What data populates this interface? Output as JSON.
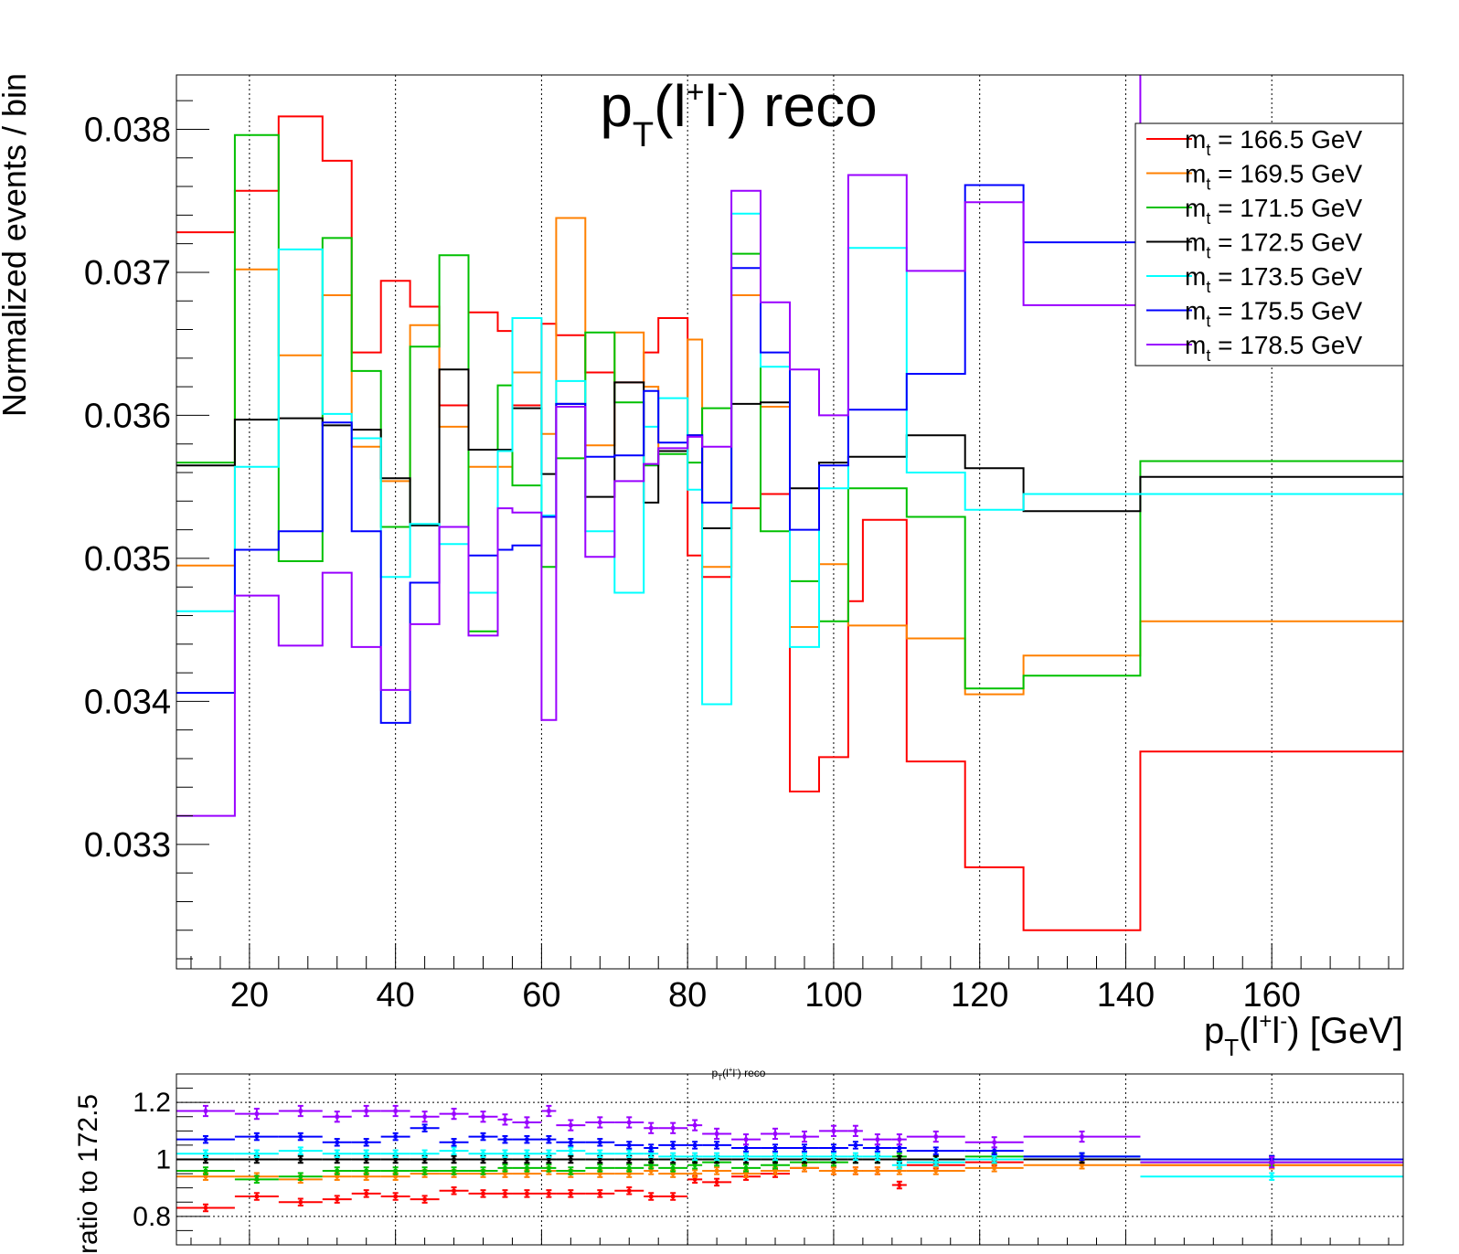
{
  "chart_data": [
    {
      "type": "line",
      "title": "p_T(l+l-) reco",
      "title_parts": {
        "base": "p",
        "sub": "T",
        "open": "(l",
        "sup1": "+",
        "mid": "l",
        "sup2": "-",
        "close": ") reco"
      },
      "xlabel_parts": {
        "base": "p",
        "sub": "T",
        "open": "(l",
        "sup1": "+",
        "mid": "l",
        "sup2": "-",
        "close": ") [GeV]"
      },
      "ylabel": "Normalized events / bin",
      "xlim": [
        10,
        178
      ],
      "ylim": [
        0.03213,
        0.03838
      ],
      "x_ticks": [
        20,
        40,
        60,
        80,
        100,
        120,
        140,
        160
      ],
      "x_tick_labels": [
        "20",
        "40",
        "60",
        "80",
        "100",
        "120",
        "140",
        "160"
      ],
      "y_ticks": [
        0.033,
        0.034,
        0.035,
        0.036,
        0.037,
        0.038
      ],
      "y_tick_labels": [
        "0.033",
        "0.034",
        "0.035",
        "0.036",
        "0.037",
        "0.038"
      ],
      "grid": "vertical",
      "legend_position": "top-right",
      "legend_prefix": "m",
      "legend_sub": "t",
      "bin_edges": [
        10,
        18,
        24,
        30,
        34,
        38,
        42,
        46,
        50,
        54,
        56,
        60,
        62,
        66,
        70,
        74,
        76,
        80,
        82,
        86,
        90,
        94,
        98,
        102,
        104,
        108,
        110,
        118,
        126,
        142,
        178
      ],
      "series": [
        {
          "name": "= 166.5 GeV",
          "color": "#ff0000",
          "values": [
            0.03728,
            0.03757,
            0.03809,
            0.03778,
            0.03644,
            0.03694,
            0.03676,
            0.03607,
            0.03672,
            0.03659,
            0.03607,
            0.03664,
            0.03656,
            0.0363,
            0.03623,
            0.03644,
            0.03668,
            0.03502,
            0.03487,
            0.03535,
            0.03545,
            0.03337,
            0.03361,
            0.0347,
            0.03527,
            0.03527,
            0.03358,
            0.03284,
            0.0324,
            0.03365
          ]
        },
        {
          "name": "= 169.5 GeV",
          "color": "#ff8000",
          "values": [
            0.03495,
            0.03702,
            0.03642,
            0.03684,
            0.03578,
            0.03554,
            0.03663,
            0.03592,
            0.03564,
            0.03564,
            0.0363,
            0.03587,
            0.03738,
            0.03579,
            0.03658,
            0.0362,
            0.03575,
            0.03653,
            0.03494,
            0.03684,
            0.03606,
            0.03452,
            0.03496,
            0.03453,
            0.03453,
            0.03453,
            0.03444,
            0.03405,
            0.03432,
            0.03456
          ]
        },
        {
          "name": "= 171.5 GeV",
          "color": "#00c000",
          "values": [
            0.03567,
            0.03796,
            0.03498,
            0.03724,
            0.03631,
            0.03522,
            0.03648,
            0.03712,
            0.03449,
            0.03621,
            0.03551,
            0.03494,
            0.0357,
            0.03658,
            0.03609,
            0.03565,
            0.03573,
            0.03567,
            0.03605,
            0.03713,
            0.03519,
            0.03484,
            0.03456,
            0.03549,
            0.03549,
            0.03549,
            0.03529,
            0.03409,
            0.03418,
            0.03568
          ]
        },
        {
          "name": "= 172.5 GeV",
          "color": "#000000",
          "values": [
            0.03565,
            0.03597,
            0.03598,
            0.03593,
            0.0359,
            0.03556,
            0.03523,
            0.03632,
            0.03576,
            0.03576,
            0.03605,
            0.03559,
            0.03608,
            0.03543,
            0.03623,
            0.03539,
            0.03575,
            0.03586,
            0.03521,
            0.03608,
            0.03609,
            0.03549,
            0.03567,
            0.03571,
            0.03571,
            0.03571,
            0.03586,
            0.03563,
            0.03533,
            0.03557
          ]
        },
        {
          "name": "= 173.5 GeV",
          "color": "#00ffff",
          "values": [
            0.03463,
            0.03564,
            0.03716,
            0.03601,
            0.03584,
            0.03487,
            0.03524,
            0.0351,
            0.03476,
            0.03575,
            0.03668,
            0.0353,
            0.03624,
            0.03519,
            0.03476,
            0.03592,
            0.03612,
            0.03548,
            0.03398,
            0.03741,
            0.03634,
            0.03438,
            0.03549,
            0.03717,
            0.03717,
            0.03717,
            0.0356,
            0.03534,
            0.03545,
            0.03545
          ]
        },
        {
          "name": "= 175.5 GeV",
          "color": "#0000ff",
          "values": [
            0.03406,
            0.03506,
            0.03519,
            0.03595,
            0.03519,
            0.03385,
            0.03483,
            0.03522,
            0.03502,
            0.03506,
            0.03509,
            0.03529,
            0.03608,
            0.03571,
            0.03572,
            0.03617,
            0.03581,
            0.03586,
            0.03539,
            0.03703,
            0.03644,
            0.0352,
            0.03565,
            0.03604,
            0.03604,
            0.03604,
            0.03629,
            0.03761,
            0.03721,
            0.03721
          ]
        },
        {
          "name": "= 178.5 GeV",
          "color": "#9900ff",
          "values": [
            0.0332,
            0.03474,
            0.03439,
            0.0349,
            0.03438,
            0.03408,
            0.03454,
            0.03522,
            0.03446,
            0.03535,
            0.03532,
            0.03387,
            0.03606,
            0.03501,
            0.03554,
            0.03566,
            0.03577,
            0.03585,
            0.03578,
            0.03757,
            0.03679,
            0.03632,
            0.036,
            0.03768,
            0.03768,
            0.03768,
            0.03701,
            0.03749,
            0.03677,
            0.0384
          ]
        }
      ]
    },
    {
      "type": "scatter",
      "title": "p_T(l+l-) reco",
      "title_parts": {
        "base": "p",
        "sub": "T",
        "open": "(l",
        "sup1": "+",
        "mid": "l",
        "sup2": "-",
        "close": ") reco"
      },
      "ylabel": "ratio to 172.5",
      "xlim": [
        10,
        178
      ],
      "ylim": [
        0.7,
        1.3
      ],
      "y_ticks": [
        0.8,
        1.0,
        1.2
      ],
      "y_tick_labels": [
        "0.8",
        "1",
        "1.2"
      ],
      "x_ticks": [
        20,
        40,
        60,
        80,
        100,
        120,
        140,
        160
      ],
      "grid": "both",
      "bin_edges": [
        10,
        18,
        24,
        30,
        34,
        38,
        42,
        46,
        50,
        54,
        56,
        60,
        62,
        66,
        70,
        74,
        76,
        80,
        82,
        86,
        90,
        94,
        98,
        102,
        104,
        108,
        110,
        118,
        126,
        142,
        178
      ],
      "series": [
        {
          "name": "= 166.5 GeV",
          "color": "#ff0000",
          "values": [
            0.83,
            0.87,
            0.85,
            0.86,
            0.88,
            0.87,
            0.86,
            0.89,
            0.88,
            0.88,
            0.88,
            0.88,
            0.88,
            0.88,
            0.89,
            0.87,
            0.87,
            0.93,
            0.92,
            0.94,
            0.95,
            0.97,
            0.96,
            0.96,
            0.96,
            0.91,
            0.98,
            0.99,
            1.0,
            0.98
          ],
          "errors": [
            0.012,
            0.012,
            0.012,
            0.012,
            0.012,
            0.012,
            0.012,
            0.012,
            0.012,
            0.012,
            0.012,
            0.012,
            0.012,
            0.012,
            0.012,
            0.012,
            0.012,
            0.012,
            0.012,
            0.012,
            0.012,
            0.012,
            0.012,
            0.012,
            0.012,
            0.012,
            0.012,
            0.012,
            0.012,
            0.012
          ]
        },
        {
          "name": "= 169.5 GeV",
          "color": "#ff8000",
          "values": [
            0.94,
            0.94,
            0.93,
            0.94,
            0.94,
            0.94,
            0.95,
            0.95,
            0.95,
            0.95,
            0.95,
            0.96,
            0.95,
            0.95,
            0.95,
            0.96,
            0.95,
            0.95,
            0.96,
            0.95,
            0.96,
            0.97,
            0.96,
            0.96,
            0.96,
            0.96,
            0.96,
            0.97,
            0.98,
            0.98
          ],
          "errors": [
            0.012,
            0.012,
            0.012,
            0.012,
            0.012,
            0.012,
            0.012,
            0.012,
            0.012,
            0.012,
            0.012,
            0.012,
            0.012,
            0.012,
            0.012,
            0.012,
            0.012,
            0.012,
            0.012,
            0.012,
            0.012,
            0.012,
            0.012,
            0.012,
            0.012,
            0.012,
            0.012,
            0.012,
            0.012,
            0.012
          ]
        },
        {
          "name": "= 171.5 GeV",
          "color": "#00c000",
          "values": [
            0.96,
            0.93,
            0.94,
            0.96,
            0.96,
            0.96,
            0.96,
            0.96,
            0.96,
            0.97,
            0.97,
            0.97,
            0.96,
            0.97,
            0.97,
            0.98,
            0.97,
            0.98,
            0.99,
            0.97,
            0.98,
            0.99,
            0.99,
            1.0,
            1.0,
            1.01,
            1.0,
            1.01,
            1.01,
            0.99
          ],
          "errors": [
            0.012,
            0.012,
            0.012,
            0.012,
            0.012,
            0.012,
            0.012,
            0.012,
            0.012,
            0.012,
            0.012,
            0.012,
            0.012,
            0.012,
            0.012,
            0.012,
            0.012,
            0.012,
            0.012,
            0.012,
            0.012,
            0.012,
            0.012,
            0.012,
            0.012,
            0.012,
            0.012,
            0.012,
            0.012,
            0.012
          ]
        },
        {
          "name": "= 172.5 GeV",
          "color": "#000000",
          "values": [
            1.0,
            1.0,
            1.0,
            1.0,
            1.0,
            1.0,
            1.0,
            1.0,
            1.0,
            1.0,
            1.0,
            1.0,
            1.0,
            1.0,
            1.0,
            1.0,
            1.0,
            1.0,
            1.0,
            1.0,
            1.0,
            1.0,
            1.0,
            1.0,
            1.0,
            1.0,
            1.0,
            1.0,
            1.0,
            1.0
          ],
          "errors": [
            0.012,
            0.012,
            0.012,
            0.012,
            0.012,
            0.012,
            0.012,
            0.012,
            0.012,
            0.012,
            0.012,
            0.012,
            0.012,
            0.012,
            0.012,
            0.012,
            0.012,
            0.012,
            0.012,
            0.012,
            0.012,
            0.012,
            0.012,
            0.012,
            0.012,
            0.012,
            0.012,
            0.012,
            0.012,
            0.012
          ]
        },
        {
          "name": "= 173.5 GeV",
          "color": "#00ffff",
          "values": [
            1.02,
            1.02,
            1.03,
            1.02,
            1.02,
            1.02,
            1.02,
            1.03,
            1.02,
            1.02,
            1.02,
            1.02,
            1.03,
            1.02,
            1.02,
            1.02,
            1.01,
            1.01,
            1.01,
            1.01,
            1.01,
            1.01,
            1.01,
            1.01,
            1.01,
            0.98,
            0.99,
            1.0,
            1.01,
            0.94
          ],
          "errors": [
            0.012,
            0.012,
            0.012,
            0.012,
            0.012,
            0.012,
            0.012,
            0.012,
            0.012,
            0.012,
            0.012,
            0.012,
            0.012,
            0.012,
            0.012,
            0.012,
            0.012,
            0.012,
            0.012,
            0.012,
            0.012,
            0.012,
            0.012,
            0.012,
            0.012,
            0.012,
            0.012,
            0.012,
            0.012,
            0.012
          ]
        },
        {
          "name": "= 175.5 GeV",
          "color": "#0000ff",
          "values": [
            1.07,
            1.08,
            1.08,
            1.06,
            1.06,
            1.08,
            1.11,
            1.06,
            1.08,
            1.07,
            1.07,
            1.07,
            1.06,
            1.06,
            1.05,
            1.04,
            1.05,
            1.05,
            1.05,
            1.04,
            1.04,
            1.04,
            1.04,
            1.05,
            1.04,
            1.04,
            1.03,
            1.03,
            1.01,
            1.0
          ],
          "errors": [
            0.012,
            0.012,
            0.012,
            0.012,
            0.012,
            0.012,
            0.012,
            0.012,
            0.012,
            0.012,
            0.012,
            0.012,
            0.012,
            0.012,
            0.012,
            0.012,
            0.012,
            0.012,
            0.012,
            0.012,
            0.012,
            0.012,
            0.012,
            0.012,
            0.012,
            0.012,
            0.012,
            0.012,
            0.012,
            0.012
          ]
        },
        {
          "name": "= 178.5 GeV",
          "color": "#9900ff",
          "values": [
            1.17,
            1.16,
            1.17,
            1.15,
            1.17,
            1.17,
            1.15,
            1.16,
            1.15,
            1.14,
            1.13,
            1.17,
            1.12,
            1.13,
            1.13,
            1.11,
            1.11,
            1.12,
            1.09,
            1.07,
            1.09,
            1.08,
            1.1,
            1.1,
            1.07,
            1.07,
            1.08,
            1.06,
            1.08,
            0.99
          ],
          "errors": [
            0.018,
            0.018,
            0.018,
            0.018,
            0.018,
            0.018,
            0.018,
            0.018,
            0.018,
            0.018,
            0.018,
            0.018,
            0.018,
            0.018,
            0.018,
            0.018,
            0.018,
            0.018,
            0.018,
            0.018,
            0.018,
            0.018,
            0.018,
            0.018,
            0.018,
            0.018,
            0.018,
            0.018,
            0.018,
            0.018
          ]
        }
      ]
    }
  ]
}
